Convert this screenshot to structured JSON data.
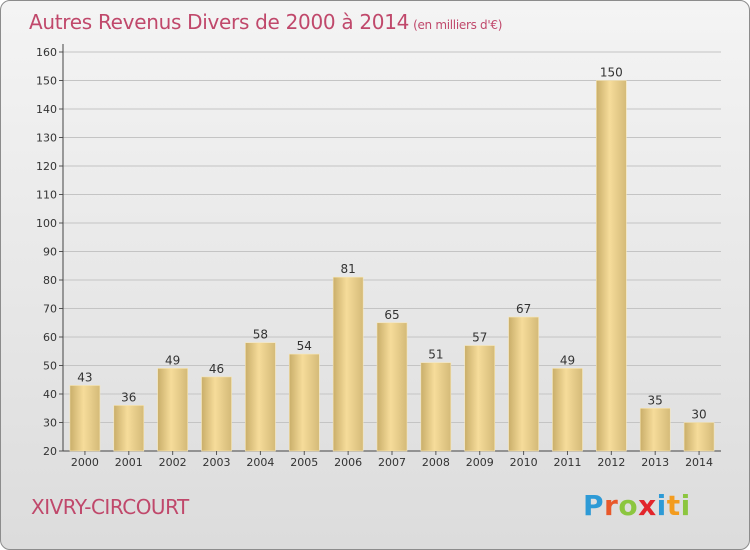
{
  "header": {
    "title": "Autres Revenus Divers de 2000 à 2014",
    "unit": "(en milliers d'€)"
  },
  "footer": {
    "city": "XIVRY-CIRCOURT",
    "logo_text": "Proxiti"
  },
  "colors": {
    "title": "#c0486b",
    "bar_light": "#f6dc9a",
    "bar_dark": "#c3a865",
    "logo_letters": [
      "#2d9ad6",
      "#e8582a",
      "#8cc63f",
      "#e2252b",
      "#2d9ad6",
      "#f39c1f",
      "#8cc63f"
    ]
  },
  "chart_data": {
    "type": "bar",
    "title": "Autres Revenus Divers de 2000 à 2014",
    "categories": [
      "2000",
      "2001",
      "2002",
      "2003",
      "2004",
      "2005",
      "2006",
      "2007",
      "2008",
      "2009",
      "2010",
      "2011",
      "2012",
      "2013",
      "2014"
    ],
    "values": [
      43,
      36,
      49,
      46,
      58,
      54,
      81,
      65,
      51,
      57,
      67,
      49,
      150,
      35,
      30
    ],
    "ylim": [
      20,
      160
    ],
    "yticks": [
      20,
      30,
      40,
      50,
      60,
      70,
      80,
      90,
      100,
      110,
      120,
      130,
      140,
      150,
      160
    ],
    "grid": true
  }
}
